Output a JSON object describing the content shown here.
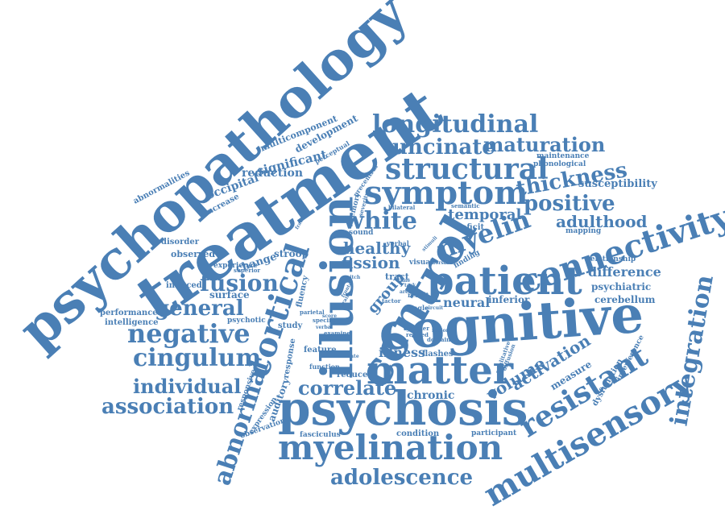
{
  "theme": {
    "word_color": "#4a7fb5",
    "background": "#ffffff"
  },
  "words": [
    "psychopathology",
    "treatment",
    "cognitive",
    "psychosis",
    "myelination",
    "patient",
    "control",
    "illusion",
    "cortical",
    "matter",
    "connectivity",
    "multisensory",
    "resistant",
    "symptom",
    "structural",
    "longitudinal",
    "negative",
    "cingulum",
    "myelin",
    "integration",
    "abnormal",
    "white",
    "general",
    "fusion",
    "association",
    "individual",
    "correlate",
    "adolescence",
    "uncinate",
    "maturation",
    "positive",
    "thickness",
    "adulthood",
    "temporal",
    "healthy",
    "fission",
    "neural",
    "difference",
    "illness",
    "volume",
    "activation",
    "chronic",
    "group",
    "significant",
    "reduction",
    "occipital",
    "multicomponent",
    "development",
    "abnormalities",
    "increase",
    "disorder",
    "stroop",
    "change",
    "observed",
    "experience",
    "surface",
    "induced",
    "performance",
    "intelligence",
    "psychotic",
    "study",
    "response",
    "auditory",
    "responsive",
    "expression",
    "observation",
    "fasciculus",
    "condition",
    "participant",
    "fluency",
    "feature",
    "function",
    "reduced",
    "flashes",
    "measure",
    "dysfunction",
    "interference",
    "cerebellum",
    "psychiatric",
    "relationship",
    "mapping",
    "phonological",
    "maintenance",
    "susceptibility",
    "inferior",
    "deficit",
    "semantic",
    "sound",
    "verbal",
    "visual",
    "finding",
    "tract",
    "memory",
    "severity",
    "bilateral",
    "precentral",
    "perceptual",
    "superior",
    "parietal",
    "examine",
    "domain",
    "greater",
    "related",
    "single",
    "result",
    "specific",
    "factor",
    "task",
    "time",
    "frontal",
    "fraction",
    "brain",
    "qualitative",
    "diffusion",
    "region",
    "stimuli",
    "dorsal",
    "circuit",
    "pitch",
    "verbal",
    "area",
    "rate",
    "score"
  ]
}
